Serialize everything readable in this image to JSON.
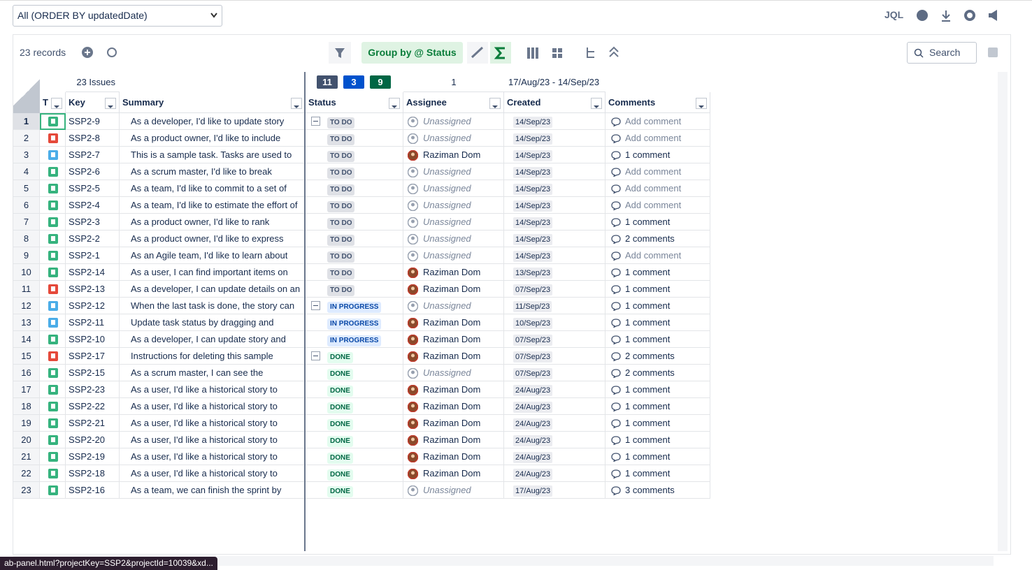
{
  "toolbar": {
    "filter": "All (ORDER BY updatedDate)",
    "jql": "JQL",
    "records": "23 records",
    "group_by": "Group by @ Status",
    "search": "Search"
  },
  "summary_row": {
    "issues": "23 Issues",
    "status_counts": [
      11,
      3,
      9
    ],
    "assignee_count": 1,
    "created_range": "17/Aug/23 - 14/Sep/23"
  },
  "table": {
    "columns": [
      "T",
      "Key",
      "Summary",
      "Status",
      "Assignee",
      "Created",
      "Comments"
    ],
    "rows": [
      [
        1,
        "SSP2-9",
        "As a developer, I'd like to update story",
        "TO DO",
        "Unassigned",
        "14/Sep/23",
        "Add comment"
      ],
      [
        2,
        "SSP2-8",
        "As a product owner, I'd like to include",
        "TO DO",
        "Unassigned",
        "14/Sep/23",
        "Add comment"
      ],
      [
        3,
        "SSP2-7",
        "This is a sample task. Tasks are used to",
        "TO DO",
        "Raziman Dom",
        "14/Sep/23",
        "1 comment"
      ],
      [
        4,
        "SSP2-6",
        "As a scrum master, I'd like to break",
        "TO DO",
        "Unassigned",
        "14/Sep/23",
        "Add comment"
      ],
      [
        5,
        "SSP2-5",
        "As a team, I'd like to commit to a set of",
        "TO DO",
        "Unassigned",
        "14/Sep/23",
        "Add comment"
      ],
      [
        6,
        "SSP2-4",
        "As a team, I'd like to estimate the effort of",
        "TO DO",
        "Unassigned",
        "14/Sep/23",
        "Add comment"
      ],
      [
        7,
        "SSP2-3",
        "As a product owner, I'd like to rank",
        "TO DO",
        "Unassigned",
        "14/Sep/23",
        "1 comment"
      ],
      [
        8,
        "SSP2-2",
        "As a product owner, I'd like to express",
        "TO DO",
        "Unassigned",
        "14/Sep/23",
        "2 comments"
      ],
      [
        9,
        "SSP2-1",
        "As an Agile team, I'd like to learn about",
        "TO DO",
        "Unassigned",
        "14/Sep/23",
        "Add comment"
      ],
      [
        10,
        "SSP2-14",
        "As a user, I can find important items on",
        "TO DO",
        "Raziman Dom",
        "13/Sep/23",
        "1 comment"
      ],
      [
        11,
        "SSP2-13",
        "As a developer, I can update details on an",
        "TO DO",
        "Raziman Dom",
        "07/Sep/23",
        "1 comment"
      ],
      [
        12,
        "SSP2-12",
        "When the last task is done, the story can",
        "IN PROGRESS",
        "Unassigned",
        "11/Sep/23",
        "1 comment"
      ],
      [
        13,
        "SSP2-11",
        "Update task status by dragging and",
        "IN PROGRESS",
        "Raziman Dom",
        "10/Sep/23",
        "1 comment"
      ],
      [
        14,
        "SSP2-10",
        "As a developer, I can update story and",
        "IN PROGRESS",
        "Raziman Dom",
        "07/Sep/23",
        "1 comment"
      ],
      [
        15,
        "SSP2-17",
        "Instructions for deleting this sample",
        "DONE",
        "Raziman Dom",
        "07/Sep/23",
        "2 comments"
      ],
      [
        16,
        "SSP2-15",
        "As a scrum master, I can see the",
        "DONE",
        "Unassigned",
        "07/Sep/23",
        "2 comments"
      ],
      [
        17,
        "SSP2-23",
        "As a user, I'd like a historical story to",
        "DONE",
        "Raziman Dom",
        "24/Aug/23",
        "1 comment"
      ],
      [
        18,
        "SSP2-22",
        "As a user, I'd like a historical story to",
        "DONE",
        "Raziman Dom",
        "24/Aug/23",
        "1 comment"
      ],
      [
        19,
        "SSP2-21",
        "As a user, I'd like a historical story to",
        "DONE",
        "Raziman Dom",
        "24/Aug/23",
        "1 comment"
      ],
      [
        20,
        "SSP2-20",
        "As a user, I'd like a historical story to",
        "DONE",
        "Raziman Dom",
        "24/Aug/23",
        "1 comment"
      ],
      [
        21,
        "SSP2-19",
        "As a user, I'd like a historical story to",
        "DONE",
        "Raziman Dom",
        "24/Aug/23",
        "1 comment"
      ],
      [
        22,
        "SSP2-18",
        "As a user, I'd like a historical story to",
        "DONE",
        "Raziman Dom",
        "24/Aug/23",
        "1 comment"
      ],
      [
        23,
        "SSP2-16",
        "As a team, we can finish the sprint by",
        "DONE",
        "Unassigned",
        "17/Aug/23",
        "3 comments"
      ]
    ]
  },
  "status_bar": "ab-panel.html?projectKey=SSP2&projectId=10039&xd..."
}
